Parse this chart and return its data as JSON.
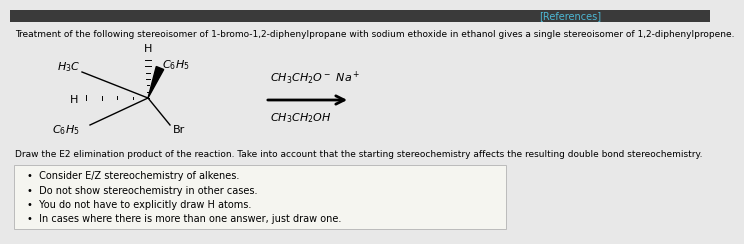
{
  "references_text": "[References]",
  "references_color": "#4db8d4",
  "top_bar_color": "#3a3a3a",
  "background_color": "#e8e8e8",
  "content_bg": "#f0eeea",
  "main_text": "Treatment of the following stereoisomer of 1-bromo-1,2-diphenylpropane with sodium ethoxide in ethanol gives a single stereoisomer of 1,2-diphenylpropene.",
  "question_text": "Draw the E2 elimination product of the reaction. Take into account that the starting stereochemistry affects the resulting double bond stereochemistry.",
  "bullet_points": [
    "Consider E/Z stereochemistry of alkenes.",
    "Do not show stereochemistry in other cases.",
    "You do not have to explicitly draw H atoms.",
    "In cases where there is more than one answer, just draw one."
  ],
  "box_bg": "#f5f5f0",
  "box_border": "#bbbbbb",
  "reagent_line1": "CH₃CH₂O⁻ Na⁺",
  "reagent_line2": "CH₃CH₂OH"
}
